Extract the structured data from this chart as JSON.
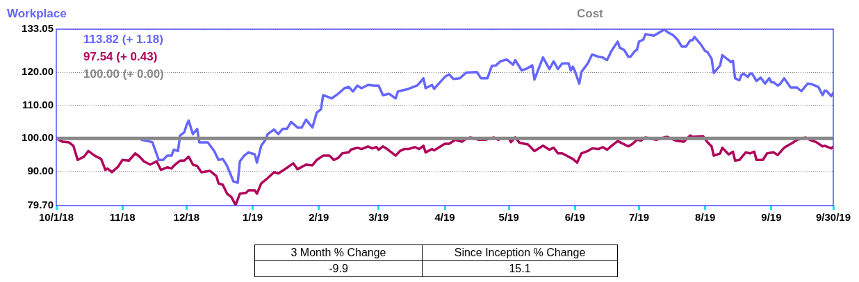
{
  "chart_data": {
    "type": "line",
    "xlim": [
      "2018-10-01",
      "2019-09-30"
    ],
    "xticks": [
      {
        "value": "2018-10-01",
        "label": "10/1/18"
      },
      {
        "value": "2018-11-01",
        "label": "11/18"
      },
      {
        "value": "2018-12-01",
        "label": "12/18"
      },
      {
        "value": "2019-01-01",
        "label": "1/19"
      },
      {
        "value": "2019-02-01",
        "label": "2/19"
      },
      {
        "value": "2019-03-01",
        "label": "3/19"
      },
      {
        "value": "2019-04-01",
        "label": "4/19"
      },
      {
        "value": "2019-05-01",
        "label": "5/19"
      },
      {
        "value": "2019-06-01",
        "label": "6/19"
      },
      {
        "value": "2019-07-01",
        "label": "7/19"
      },
      {
        "value": "2019-08-01",
        "label": "8/19"
      },
      {
        "value": "2019-09-01",
        "label": "9/19"
      },
      {
        "value": "2019-09-30",
        "label": "9/30/19"
      }
    ],
    "ylim": [
      79.7,
      133.05
    ],
    "yticks": [
      {
        "value": 79.7,
        "label": "79.70"
      },
      {
        "value": 90,
        "label": "90.00"
      },
      {
        "value": 100,
        "label": "100.00"
      },
      {
        "value": 110,
        "label": "110.00"
      },
      {
        "value": 120,
        "label": "120.00"
      },
      {
        "value": 133.05,
        "label": "133.05"
      }
    ],
    "grid": "y",
    "legend": "top",
    "marker": "none",
    "line_style": "solid",
    "annotations": [
      "113.82 (+ 1.18)",
      "97.54 (+ 0.43)",
      "100.00 (+ 0.00)",
      "3 Month % Change",
      "Since Inception % Change",
      "-9.9",
      "15.1"
    ],
    "series": [
      {
        "name": "Workplace",
        "color": "#6666ff",
        "x": [
          "2018-11-10",
          "2018-11-15",
          "2018-11-18",
          "2018-11-20",
          "2018-11-22",
          "2018-11-24",
          "2018-11-25",
          "2018-11-27",
          "2018-11-28",
          "2018-11-30",
          "2018-12-01",
          "2018-12-02",
          "2018-12-04",
          "2018-12-06",
          "2018-12-07",
          "2018-12-11",
          "2018-12-14",
          "2018-12-16",
          "2018-12-18",
          "2018-12-20",
          "2018-12-23",
          "2018-12-25",
          "2018-12-26",
          "2018-12-28",
          "2018-12-30",
          "2019-01-02",
          "2019-01-03",
          "2019-01-05",
          "2019-01-07",
          "2019-01-08",
          "2019-01-11",
          "2019-01-13",
          "2019-01-15",
          "2019-01-17",
          "2019-01-19",
          "2019-01-22",
          "2019-01-24",
          "2019-01-26",
          "2019-01-29",
          "2019-01-31",
          "2019-02-02",
          "2019-02-03",
          "2019-02-07",
          "2019-02-10",
          "2019-02-13",
          "2019-02-15",
          "2019-02-17",
          "2019-02-19",
          "2019-02-21",
          "2019-02-24",
          "2019-02-27",
          "2019-03-01",
          "2019-03-03",
          "2019-03-06",
          "2019-03-09",
          "2019-03-10",
          "2019-03-15",
          "2019-03-19",
          "2019-03-20",
          "2019-03-22",
          "2019-03-23",
          "2019-03-26",
          "2019-03-27",
          "2019-04-01",
          "2019-04-03",
          "2019-04-05",
          "2019-04-08",
          "2019-04-11",
          "2019-04-16",
          "2019-04-18",
          "2019-04-21",
          "2019-04-23",
          "2019-04-25",
          "2019-04-27",
          "2019-04-30",
          "2019-05-03",
          "2019-05-04",
          "2019-05-07",
          "2019-05-09",
          "2019-05-12",
          "2019-05-13",
          "2019-05-17",
          "2019-05-20",
          "2019-05-22",
          "2019-05-24",
          "2019-05-26",
          "2019-05-29",
          "2019-05-30",
          "2019-05-31",
          "2019-06-01",
          "2019-06-03",
          "2019-06-04",
          "2019-06-07",
          "2019-06-09",
          "2019-06-12",
          "2019-06-14",
          "2019-06-16",
          "2019-06-18",
          "2019-06-21",
          "2019-06-22",
          "2019-06-24",
          "2019-06-26",
          "2019-06-27",
          "2019-06-29",
          "2019-06-30",
          "2019-07-01",
          "2019-07-03",
          "2019-07-04",
          "2019-07-08",
          "2019-07-13",
          "2019-07-14",
          "2019-07-17",
          "2019-07-19",
          "2019-07-21",
          "2019-07-23",
          "2019-07-25",
          "2019-07-26",
          "2019-07-27",
          "2019-07-30",
          "2019-08-01",
          "2019-08-02",
          "2019-08-04",
          "2019-08-05",
          "2019-08-08",
          "2019-08-09",
          "2019-08-12",
          "2019-08-13",
          "2019-08-14",
          "2019-08-15",
          "2019-08-17",
          "2019-08-18",
          "2019-08-19",
          "2019-08-21",
          "2019-08-22",
          "2019-08-23",
          "2019-08-25",
          "2019-08-27",
          "2019-08-29",
          "2019-08-31",
          "2019-09-01",
          "2019-09-02",
          "2019-09-04",
          "2019-09-05",
          "2019-09-07",
          "2019-09-10",
          "2019-09-13",
          "2019-09-15",
          "2019-09-18",
          "2019-09-20",
          "2019-09-23",
          "2019-09-25",
          "2019-09-26",
          "2019-09-27",
          "2019-09-29",
          "2019-09-30"
        ],
        "values": [
          99.6,
          98.9,
          93.5,
          93.5,
          94.8,
          94.8,
          96.6,
          96.2,
          100.9,
          101.9,
          104.0,
          105.4,
          101.3,
          102.9,
          98.8,
          98.8,
          96.2,
          93.5,
          93.8,
          91.7,
          87.0,
          86.6,
          93.1,
          94.8,
          95.8,
          95.2,
          92.7,
          97.8,
          99.6,
          101.3,
          102.7,
          101.3,
          102.9,
          102.9,
          105.0,
          103.3,
          103.3,
          105.7,
          103.3,
          107.8,
          108.8,
          113.1,
          112.1,
          113.5,
          115.2,
          115.6,
          114.2,
          116.0,
          115.2,
          116.2,
          116.0,
          116.0,
          113.1,
          113.5,
          112.1,
          114.2,
          115.0,
          116.0,
          116.6,
          118.2,
          115.2,
          116.2,
          115.0,
          118.6,
          119.4,
          118.0,
          118.2,
          119.9,
          120.1,
          118.2,
          118.2,
          121.9,
          122.1,
          123.3,
          123.9,
          122.3,
          123.7,
          120.6,
          121.0,
          122.1,
          117.8,
          124.5,
          121.0,
          123.3,
          121.0,
          122.7,
          122.7,
          120.6,
          121.7,
          120.3,
          116.6,
          120.1,
          122.7,
          125.4,
          124.7,
          124.5,
          123.7,
          126.4,
          129.3,
          127.4,
          126.8,
          124.7,
          124.7,
          126.4,
          126.8,
          129.3,
          129.9,
          131.5,
          131.1,
          133.0,
          132.3,
          131.2,
          129.9,
          127.8,
          127.8,
          129.7,
          129.7,
          130.7,
          128.4,
          126.4,
          126.2,
          124.1,
          119.8,
          122.1,
          125.2,
          123.7,
          123.1,
          123.5,
          118.2,
          117.6,
          119.2,
          119.6,
          118.6,
          119.6,
          119.6,
          117.4,
          118.4,
          116.6,
          118.2,
          117.0,
          117.0,
          116.0,
          116.4,
          118.2,
          115.4,
          115.4,
          114.3,
          116.6,
          116.4,
          115.6,
          113.1,
          114.5,
          114.3,
          112.8,
          113.8
        ]
      },
      {
        "color": "#b0005a",
        "x": [
          "2018-10-01",
          "2018-10-04",
          "2018-10-07",
          "2018-10-09",
          "2018-10-11",
          "2018-10-14",
          "2018-10-16",
          "2018-10-19",
          "2018-10-22",
          "2018-10-24",
          "2018-10-25",
          "2018-10-27",
          "2018-10-30",
          "2018-11-01",
          "2018-11-04",
          "2018-11-07",
          "2018-11-09",
          "2018-11-11",
          "2018-11-14",
          "2018-11-17",
          "2018-11-19",
          "2018-11-22",
          "2018-11-24",
          "2018-11-25",
          "2018-11-28",
          "2018-11-30",
          "2018-12-02",
          "2018-12-04",
          "2018-12-06",
          "2018-12-08",
          "2018-12-12",
          "2018-12-15",
          "2018-12-16",
          "2018-12-18",
          "2018-12-20",
          "2018-12-22",
          "2018-12-24",
          "2018-12-26",
          "2018-12-29",
          "2018-12-30",
          "2019-01-02",
          "2019-01-03",
          "2019-01-05",
          "2019-01-08",
          "2019-01-11",
          "2019-01-13",
          "2019-01-17",
          "2019-01-20",
          "2019-01-22",
          "2019-01-26",
          "2019-01-29",
          "2019-01-31",
          "2019-02-03",
          "2019-02-06",
          "2019-02-08",
          "2019-02-10",
          "2019-02-12",
          "2019-02-15",
          "2019-02-16",
          "2019-02-19",
          "2019-02-21",
          "2019-02-24",
          "2019-02-26",
          "2019-02-28",
          "2019-03-01",
          "2019-03-03",
          "2019-03-05",
          "2019-03-09",
          "2019-03-11",
          "2019-03-13",
          "2019-03-15",
          "2019-03-18",
          "2019-03-20",
          "2019-03-22",
          "2019-03-23",
          "2019-03-26",
          "2019-03-27",
          "2019-04-01",
          "2019-04-03",
          "2019-04-06",
          "2019-04-09",
          "2019-04-11",
          "2019-04-13",
          "2019-04-17",
          "2019-04-20",
          "2019-04-24",
          "2019-04-26",
          "2019-04-28",
          "2019-05-01",
          "2019-05-02",
          "2019-05-04",
          "2019-05-06",
          "2019-05-10",
          "2019-05-13",
          "2019-05-17",
          "2019-05-20",
          "2019-05-22",
          "2019-05-24",
          "2019-05-26",
          "2019-05-31",
          "2019-06-02",
          "2019-06-04",
          "2019-06-07",
          "2019-06-09",
          "2019-06-12",
          "2019-06-14",
          "2019-06-16",
          "2019-06-19",
          "2019-06-21",
          "2019-06-26",
          "2019-06-28",
          "2019-06-30",
          "2019-07-02",
          "2019-07-04",
          "2019-07-09",
          "2019-07-14",
          "2019-07-18",
          "2019-07-22",
          "2019-07-25",
          "2019-07-26",
          "2019-07-31",
          "2019-08-02",
          "2019-08-04",
          "2019-08-05",
          "2019-08-08",
          "2019-08-09",
          "2019-08-12",
          "2019-08-14",
          "2019-08-15",
          "2019-08-17",
          "2019-08-20",
          "2019-08-22",
          "2019-08-24",
          "2019-08-25",
          "2019-08-28",
          "2019-08-30",
          "2019-09-02",
          "2019-09-04",
          "2019-09-07",
          "2019-09-08",
          "2019-09-11",
          "2019-09-13",
          "2019-09-15",
          "2019-09-17",
          "2019-09-19",
          "2019-09-22",
          "2019-09-25",
          "2019-09-26",
          "2019-09-29",
          "2019-09-30"
        ],
        "values": [
          100.0,
          99.0,
          98.8,
          97.8,
          93.5,
          94.5,
          96.2,
          94.8,
          93.8,
          90.5,
          90.9,
          89.8,
          91.5,
          93.5,
          93.3,
          95.5,
          94.5,
          93.1,
          92.1,
          93.1,
          90.5,
          91.3,
          90.9,
          91.7,
          93.3,
          93.3,
          94.5,
          92.1,
          91.7,
          89.8,
          90.2,
          88.6,
          86.4,
          86.0,
          83.3,
          82.3,
          79.9,
          83.3,
          83.6,
          84.3,
          84.3,
          83.3,
          86.4,
          88.0,
          89.8,
          89.4,
          91.1,
          92.5,
          90.7,
          92.1,
          91.9,
          93.5,
          94.8,
          94.8,
          93.5,
          94.1,
          95.5,
          95.8,
          96.6,
          97.2,
          96.8,
          97.6,
          97.0,
          97.4,
          96.6,
          97.6,
          96.8,
          94.8,
          96.2,
          96.8,
          96.8,
          97.4,
          96.8,
          97.8,
          95.8,
          96.8,
          96.4,
          98.4,
          98.4,
          99.6,
          99.0,
          99.9,
          100.3,
          99.6,
          99.6,
          100.3,
          99.6,
          100.1,
          100.1,
          98.9,
          100.3,
          98.7,
          98.2,
          96.2,
          97.8,
          96.6,
          97.2,
          95.5,
          95.5,
          93.8,
          92.7,
          95.5,
          96.2,
          97.0,
          96.8,
          97.4,
          96.6,
          98.2,
          99.2,
          97.6,
          98.4,
          99.6,
          99.4,
          100.3,
          99.6,
          100.5,
          99.4,
          99.0,
          100.9,
          100.5,
          100.7,
          98.9,
          97.6,
          94.8,
          95.5,
          97.2,
          95.2,
          96.0,
          93.3,
          93.5,
          95.8,
          95.5,
          96.0,
          93.5,
          93.5,
          95.5,
          95.8,
          95.0,
          97.2,
          97.6,
          98.7,
          99.6,
          99.9,
          100.3,
          99.6,
          98.9,
          97.6,
          97.8,
          97.0,
          97.5
        ]
      },
      {
        "name": "Cost",
        "color": "#888888",
        "x": [
          "2018-10-01",
          "2019-09-30"
        ],
        "values": [
          100.0,
          100.0
        ]
      }
    ]
  }
}
